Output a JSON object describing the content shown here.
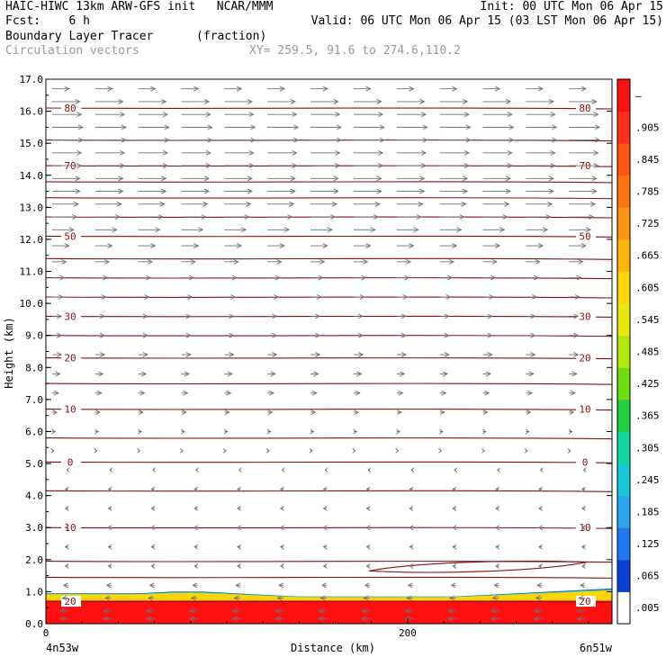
{
  "header": {
    "line1_left": "HAIC-HIWC 13km ARW-GFS init   NCAR/MMM",
    "line1_right": "Init: 00 UTC Mon 06 Apr 15",
    "line2_left": "Fcst:    6 h",
    "line2_right": "Valid: 06 UTC Mon 06 Apr 15 (03 LST Mon 06 Apr 15)",
    "line3_left": "Boundary Layer Tracer",
    "line3_units": "(fraction)",
    "line4_left": "Circulation vectors",
    "line4_xy": "XY= 259.5, 91.6 to 274.6,110.2"
  },
  "chart_data": {
    "type": "heatmap",
    "xlabel": "Distance (km)",
    "ylabel": "Height (km)",
    "xlim": [
      0,
      313
    ],
    "ylim": [
      0,
      17
    ],
    "x_ticks": [
      {
        "value": 0,
        "label": "0"
      },
      {
        "value": 200,
        "label": "200"
      }
    ],
    "x_end_labels": {
      "left": "4n53w",
      "right": "6n51w"
    },
    "y_ticks": [
      "0.0",
      "1.0",
      "2.0",
      "3.0",
      "4.0",
      "5.0",
      "6.0",
      "7.0",
      "8.0",
      "9.0",
      "10.0",
      "11.0",
      "12.0",
      "13.0",
      "14.0",
      "15.0",
      "16.0",
      "17.0"
    ],
    "colorbar": {
      "labels": [
        ".005",
        ".065",
        ".125",
        ".185",
        ".245",
        ".305",
        ".365",
        ".425",
        ".485",
        ".545",
        ".605",
        ".665",
        ".725",
        ".785",
        ".845",
        ".905",
        "–"
      ],
      "colors": [
        "#ffffff",
        "#0a3fd8",
        "#1e78f0",
        "#2aa6f0",
        "#18c8d8",
        "#10d8a0",
        "#20d040",
        "#70dc10",
        "#b0e810",
        "#e8e80a",
        "#ffd40a",
        "#ffb40a",
        "#ff9410",
        "#ff7410",
        "#ff5414",
        "#ff3018",
        "#ff1010"
      ]
    },
    "tracer_layer": {
      "top_km": [
        0.95,
        0.95,
        0.95,
        0.95,
        1.0,
        1.0,
        0.95,
        0.9,
        0.85,
        0.85,
        0.85,
        0.85,
        0.85,
        0.85,
        0.9,
        0.95,
        1.0,
        1.05,
        1.1
      ],
      "full_fraction_top_km": 0.72
    },
    "temperature_contours": {
      "levels_labeled": [
        {
          "label": "80",
          "km": 16.1
        },
        {
          "label": "70",
          "km": 14.3
        },
        {
          "label": "50",
          "km": 12.1
        },
        {
          "label": "30",
          "km": 9.6
        },
        {
          "label": "20",
          "km": 8.3
        },
        {
          "label": "10",
          "km": 6.7
        },
        {
          "label": "0",
          "km": 5.05
        },
        {
          "label": "10",
          "km": 3.0
        },
        {
          "label": "20",
          "km": 0.7
        }
      ],
      "unlabeled_km": [
        15.1,
        13.8,
        13.3,
        12.7,
        11.4,
        10.8,
        10.2,
        9.0,
        7.5,
        5.8,
        4.15,
        1.95,
        1.45
      ]
    },
    "wind_vectors": {
      "columns": 13,
      "levels_km": [
        16.7,
        16.3,
        15.9,
        15.5,
        15.1,
        14.7,
        14.3,
        13.9,
        13.5,
        13.1,
        12.7,
        12.3,
        11.8,
        11.3,
        10.8,
        10.2,
        9.6,
        9.0,
        8.4,
        7.8,
        7.2,
        6.6,
        6.0,
        5.4,
        4.8,
        4.2,
        3.6,
        3.0,
        2.4,
        1.8,
        1.2,
        0.8,
        0.4,
        0.15
      ],
      "relative_u": [
        0.55,
        0.9,
        0.95,
        1.0,
        1.0,
        0.95,
        0.95,
        0.9,
        0.9,
        0.85,
        0.8,
        0.7,
        0.55,
        0.45,
        0.4,
        0.35,
        0.3,
        0.3,
        0.3,
        0.25,
        0.2,
        0.15,
        0.1,
        0.05,
        -0.05,
        -0.1,
        -0.1,
        -0.1,
        -0.1,
        -0.1,
        -0.15,
        -0.2,
        -0.25,
        -0.25
      ]
    },
    "color": {
      "contour": "#8a1010",
      "vector": "#707070"
    }
  }
}
